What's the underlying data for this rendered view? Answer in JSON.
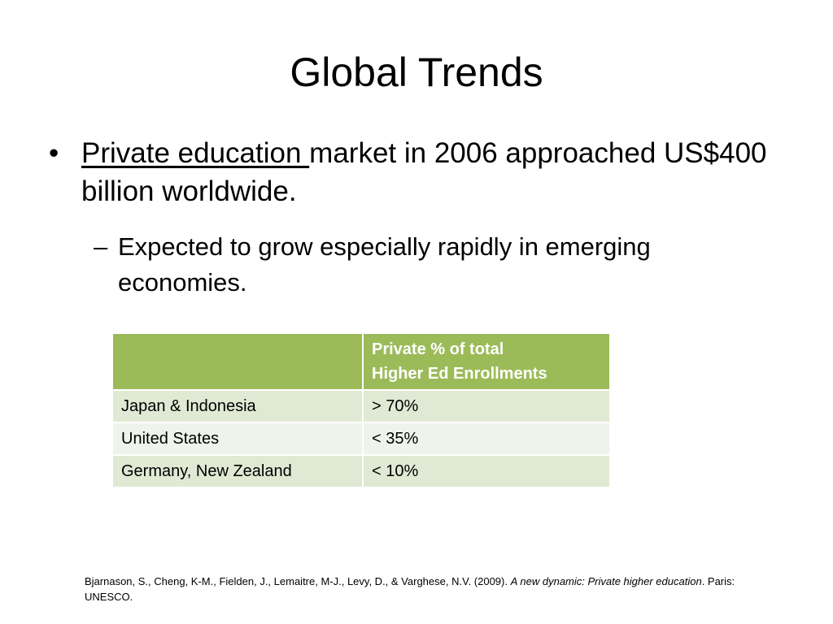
{
  "slide": {
    "title": "Global Trends",
    "bullet1": {
      "marker": "•",
      "underlined": "Private education ",
      "rest": "market in 2006 approached US$400 billion worldwide."
    },
    "bullet2": {
      "marker": "–",
      "text": "Expected to grow especially rapidly in emerging economies."
    },
    "table": {
      "header": {
        "col1": "",
        "col2_line1": "Private % of total",
        "col2_line2": "Higher Ed Enrollments"
      },
      "rows": [
        {
          "country": "Japan & Indonesia",
          "value": "> 70%"
        },
        {
          "country": "United States",
          "value": "< 35%"
        },
        {
          "country": "Germany, New Zealand",
          "value": "< 10%"
        }
      ]
    },
    "citation": {
      "authors": "Bjarnason, S., Cheng, K-M.,  Fielden, J., Lemaitre, M-J.,  Levy, D.,  & Varghese, N.V. (2009). ",
      "title_italic": "A new dynamic: Private higher education",
      "tail": ". Paris: UNESCO."
    },
    "colors": {
      "header_green": "#9bbb59",
      "row_dark": "#e0e9d4",
      "row_light": "#eff4ea"
    }
  }
}
